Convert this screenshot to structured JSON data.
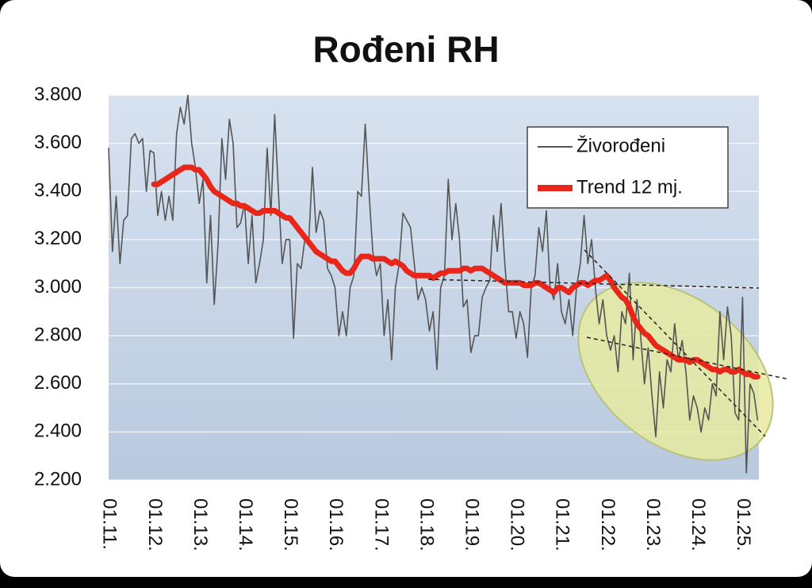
{
  "chart_data": {
    "type": "line",
    "title": "Rođeni RH",
    "categories": [
      "01.11.",
      null,
      null,
      null,
      null,
      null,
      null,
      null,
      null,
      null,
      null,
      null,
      "01.12.",
      null,
      null,
      null,
      null,
      null,
      null,
      null,
      null,
      null,
      null,
      null,
      "01.13.",
      null,
      null,
      null,
      null,
      null,
      null,
      null,
      null,
      null,
      null,
      null,
      "01.14.",
      null,
      null,
      null,
      null,
      null,
      null,
      null,
      null,
      null,
      null,
      null,
      "01.15.",
      null,
      null,
      null,
      null,
      null,
      null,
      null,
      null,
      null,
      null,
      null,
      "01.16.",
      null,
      null,
      null,
      null,
      null,
      null,
      null,
      null,
      null,
      null,
      null,
      "01.17.",
      null,
      null,
      null,
      null,
      null,
      null,
      null,
      null,
      null,
      null,
      null,
      "01.18.",
      null,
      null,
      null,
      null,
      null,
      null,
      null,
      null,
      null,
      null,
      null,
      "01.19.",
      null,
      null,
      null,
      null,
      null,
      null,
      null,
      null,
      null,
      null,
      null,
      "01.20.",
      null,
      null,
      null,
      null,
      null,
      null,
      null,
      null,
      null,
      null,
      null,
      "01.21.",
      null,
      null,
      null,
      null,
      null,
      null,
      null,
      null,
      null,
      null,
      null,
      "01.22.",
      null,
      null,
      null,
      null,
      null,
      null,
      null,
      null,
      null,
      null,
      null,
      "01.23.",
      null,
      null,
      null,
      null,
      null,
      null,
      null,
      null,
      null,
      null,
      null,
      "01.24.",
      null,
      null,
      null,
      null,
      null,
      null,
      null,
      null,
      null,
      null,
      null,
      "01.25.",
      null,
      null,
      null,
      null
    ],
    "series": [
      {
        "name": "Živorođeni",
        "color": "#555555",
        "values": [
          3580,
          3150,
          3380,
          3100,
          3280,
          3300,
          3620,
          3640,
          3600,
          3620,
          3400,
          3570,
          3560,
          3300,
          3400,
          3280,
          3380,
          3280,
          3640,
          3750,
          3680,
          3800,
          3600,
          3500,
          3350,
          3450,
          3020,
          3300,
          2930,
          3180,
          3620,
          3450,
          3700,
          3600,
          3250,
          3270,
          3350,
          3100,
          3300,
          3020,
          3100,
          3200,
          3580,
          3300,
          3720,
          3400,
          3100,
          3200,
          3200,
          2790,
          3100,
          3080,
          3200,
          3180,
          3500,
          3230,
          3320,
          3280,
          3080,
          3050,
          3000,
          2800,
          2900,
          2800,
          3000,
          3050,
          3400,
          3380,
          3680,
          3400,
          3150,
          3050,
          3100,
          2800,
          2950,
          2700,
          3000,
          3100,
          3310,
          3280,
          3250,
          3100,
          2950,
          3000,
          2950,
          2820,
          2900,
          2660,
          3000,
          3050,
          3450,
          3200,
          3350,
          3200,
          2920,
          2950,
          2730,
          2800,
          2800,
          2960,
          3000,
          3030,
          3300,
          3150,
          3350,
          3100,
          2900,
          2900,
          2790,
          2900,
          2850,
          2710,
          3000,
          3050,
          3250,
          3150,
          3320,
          3000,
          2950,
          3100,
          2900,
          2850,
          2950,
          2800,
          3000,
          3100,
          3300,
          3100,
          3200,
          3000,
          2850,
          2950,
          2800,
          2740,
          2800,
          2650,
          2900,
          2850,
          3060,
          2700,
          2950,
          2800,
          2600,
          2750,
          2550,
          2380,
          2650,
          2500,
          2700,
          2650,
          2850,
          2700,
          2780,
          2650,
          2450,
          2550,
          2500,
          2400,
          2500,
          2450,
          2600,
          2550,
          2900,
          2700,
          2920,
          2800,
          2480,
          2450,
          2960,
          2230,
          2600,
          2560,
          2450
        ]
      },
      {
        "name": "Trend 12 mj.",
        "color": "#e8261a",
        "values": [
          null,
          null,
          null,
          null,
          null,
          null,
          null,
          null,
          null,
          null,
          null,
          null,
          3430,
          3430,
          3440,
          3450,
          3460,
          3470,
          3480,
          3490,
          3500,
          3500,
          3500,
          3490,
          3490,
          3470,
          3450,
          3420,
          3400,
          3390,
          3380,
          3370,
          3360,
          3350,
          3350,
          3340,
          3340,
          3330,
          3320,
          3310,
          3310,
          3320,
          3320,
          3320,
          3320,
          3310,
          3300,
          3290,
          3290,
          3270,
          3250,
          3230,
          3210,
          3190,
          3170,
          3150,
          3140,
          3130,
          3120,
          3110,
          3110,
          3090,
          3070,
          3060,
          3060,
          3080,
          3110,
          3130,
          3130,
          3130,
          3120,
          3120,
          3120,
          3120,
          3110,
          3100,
          3110,
          3100,
          3090,
          3070,
          3060,
          3050,
          3050,
          3050,
          3050,
          3050,
          3040,
          3050,
          3060,
          3060,
          3070,
          3070,
          3070,
          3070,
          3080,
          3080,
          3070,
          3080,
          3080,
          3080,
          3070,
          3060,
          3050,
          3040,
          3030,
          3020,
          3020,
          3020,
          3020,
          3020,
          3010,
          3010,
          3010,
          3020,
          3020,
          3010,
          3000,
          2990,
          2980,
          3000,
          3000,
          2990,
          2980,
          3000,
          3010,
          3020,
          3020,
          3010,
          3020,
          3030,
          3030,
          3040,
          3050,
          3030,
          3000,
          2980,
          2960,
          2950,
          2920,
          2880,
          2850,
          2830,
          2810,
          2800,
          2780,
          2760,
          2750,
          2740,
          2730,
          2720,
          2710,
          2700,
          2700,
          2700,
          2690,
          2700,
          2700,
          2690,
          2680,
          2670,
          2660,
          2660,
          2650,
          2660,
          2660,
          2650,
          2650,
          2660,
          2650,
          2640,
          2640,
          2630,
          2630
        ]
      }
    ],
    "ylim": [
      2200,
      3800
    ],
    "yticks": [
      {
        "value": 2200,
        "label": "2.200"
      },
      {
        "value": 2400,
        "label": "2.400"
      },
      {
        "value": 2600,
        "label": "2.600"
      },
      {
        "value": 2800,
        "label": "2.800"
      },
      {
        "value": 3000,
        "label": "3.000"
      },
      {
        "value": 3200,
        "label": "3.200"
      },
      {
        "value": 3400,
        "label": "3.400"
      },
      {
        "value": 3600,
        "label": "3.600"
      },
      {
        "value": 3800,
        "label": "3.800"
      }
    ],
    "grid": true
  }
}
